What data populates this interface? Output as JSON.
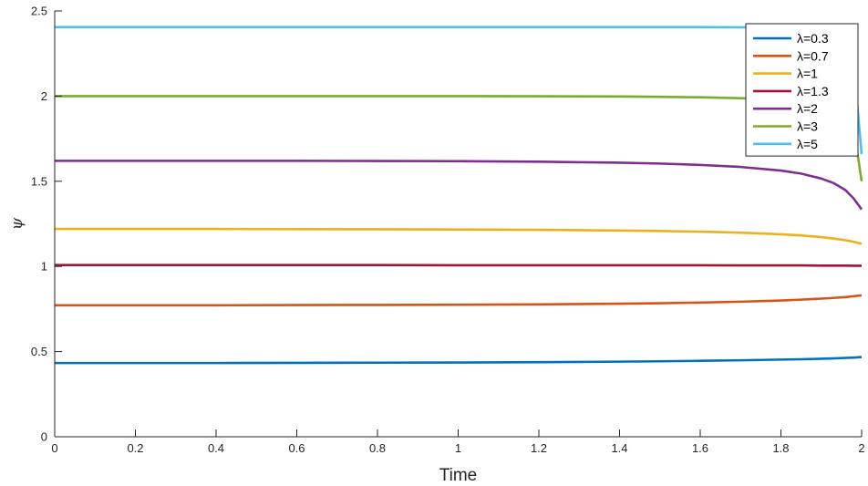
{
  "chart_data": {
    "type": "line",
    "title": "",
    "xlabel": "Time",
    "ylabel": "ψ",
    "xlim": [
      0,
      2
    ],
    "ylim": [
      0,
      2.5
    ],
    "xticks": [
      0,
      0.2,
      0.4,
      0.6,
      0.8,
      1,
      1.2,
      1.4,
      1.6,
      1.8,
      2
    ],
    "xtick_labels": [
      "0",
      "0.2",
      "0.4",
      "0.6",
      "0.8",
      "1",
      "1.2",
      "1.4",
      "1.6",
      "1.8",
      "2"
    ],
    "yticks": [
      0,
      0.5,
      1,
      1.5,
      2,
      2.5
    ],
    "ytick_labels": [
      "0",
      "0.5",
      "1",
      "1.5",
      "2",
      "2.5"
    ],
    "grid": false,
    "legend_position": "top-right",
    "x": [
      0,
      0.2,
      0.4,
      0.6,
      0.8,
      1.0,
      1.2,
      1.4,
      1.5,
      1.6,
      1.7,
      1.8,
      1.85,
      1.9,
      1.93,
      1.96,
      1.98,
      2.0
    ],
    "series": [
      {
        "name": "λ=0.3",
        "color": "#0072BD",
        "values": [
          0.433,
          0.433,
          0.433,
          0.434,
          0.435,
          0.436,
          0.438,
          0.441,
          0.443,
          0.446,
          0.449,
          0.453,
          0.455,
          0.458,
          0.46,
          0.463,
          0.465,
          0.468
        ]
      },
      {
        "name": "λ=0.7",
        "color": "#D95319",
        "values": [
          0.772,
          0.772,
          0.772,
          0.773,
          0.774,
          0.775,
          0.777,
          0.781,
          0.784,
          0.788,
          0.793,
          0.8,
          0.805,
          0.811,
          0.815,
          0.82,
          0.825,
          0.83
        ]
      },
      {
        "name": "λ=1",
        "color": "#EDB120",
        "values": [
          1.22,
          1.22,
          1.22,
          1.219,
          1.218,
          1.217,
          1.215,
          1.211,
          1.208,
          1.204,
          1.198,
          1.189,
          1.182,
          1.172,
          1.164,
          1.154,
          1.145,
          1.133
        ]
      },
      {
        "name": "λ=1.3",
        "color": "#A2142F",
        "values": [
          1.008,
          1.008,
          1.008,
          1.008,
          1.008,
          1.007,
          1.007,
          1.007,
          1.007,
          1.007,
          1.006,
          1.006,
          1.006,
          1.005,
          1.005,
          1.005,
          1.004,
          1.004
        ]
      },
      {
        "name": "λ=2",
        "color": "#7E2F8E",
        "values": [
          1.62,
          1.62,
          1.62,
          1.62,
          1.619,
          1.618,
          1.615,
          1.609,
          1.604,
          1.596,
          1.584,
          1.563,
          1.545,
          1.516,
          1.49,
          1.448,
          1.4,
          1.335
        ]
      },
      {
        "name": "λ=3",
        "color": "#77AC30",
        "values": [
          2.0,
          2.0,
          2.0,
          2.0,
          2.0,
          2.0,
          1.999,
          1.998,
          1.996,
          1.993,
          1.988,
          1.978,
          1.97,
          1.955,
          1.935,
          1.89,
          1.82,
          1.5
        ]
      },
      {
        "name": "λ=5",
        "color": "#4DBEEE",
        "values": [
          2.405,
          2.405,
          2.405,
          2.405,
          2.405,
          2.405,
          2.405,
          2.405,
          2.405,
          2.405,
          2.404,
          2.403,
          2.402,
          2.398,
          2.39,
          2.36,
          2.2,
          1.66
        ]
      }
    ]
  }
}
